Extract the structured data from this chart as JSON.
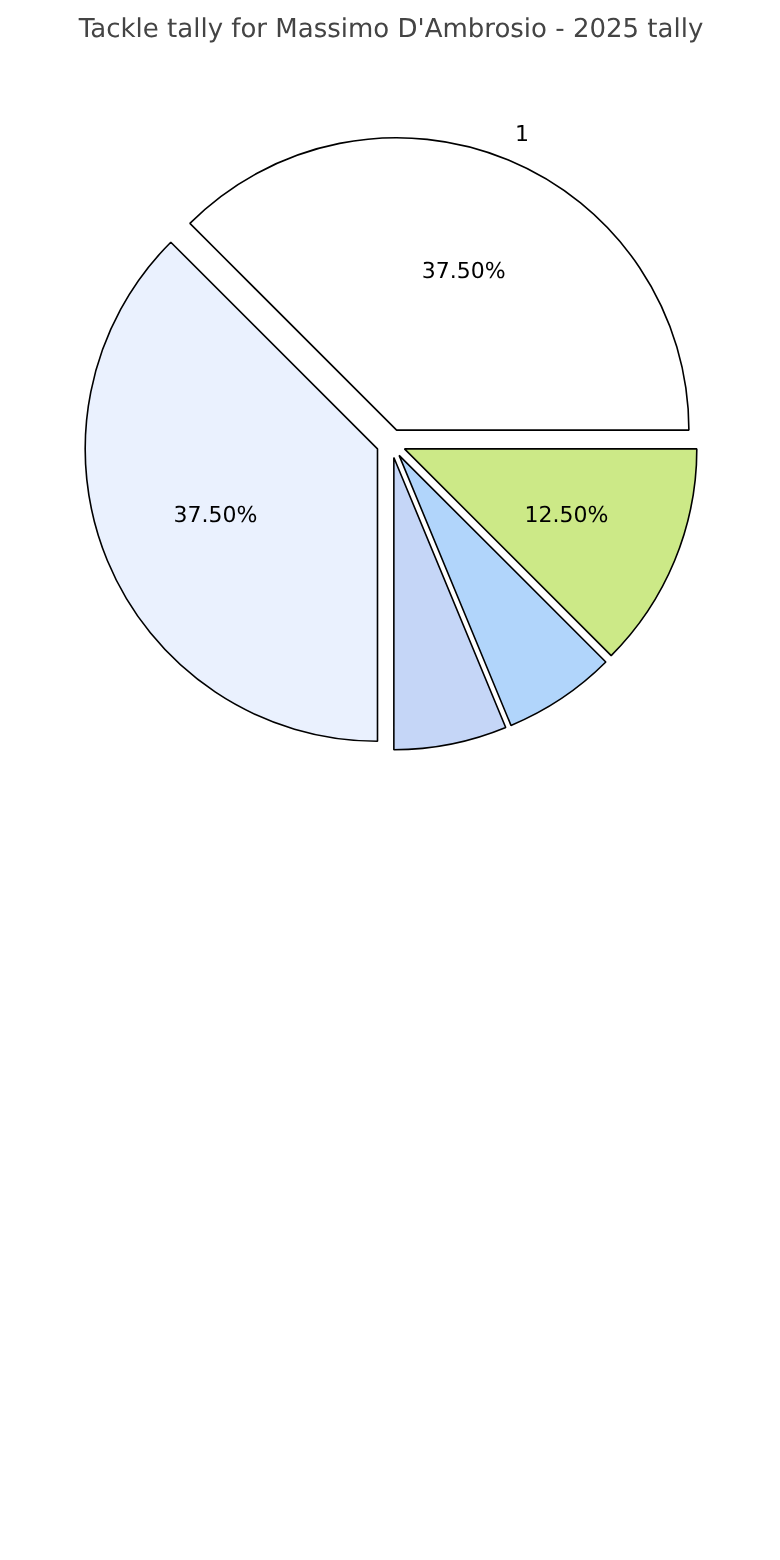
{
  "chart_data": {
    "type": "pie",
    "title": "Tackle tally for Massimo D'Ambrosio - 2025 tally",
    "categories": [
      "1",
      null,
      null,
      null,
      null
    ],
    "values": [
      37.5,
      37.5,
      6.25,
      6.25,
      12.5
    ],
    "colors": [
      "#ffffff",
      "#eaf1fe",
      "#c5d6f7",
      "#b1d5fb",
      "#cce987"
    ],
    "value_labels": [
      "37.50%",
      "37.50%",
      null,
      null,
      "12.50%"
    ]
  }
}
